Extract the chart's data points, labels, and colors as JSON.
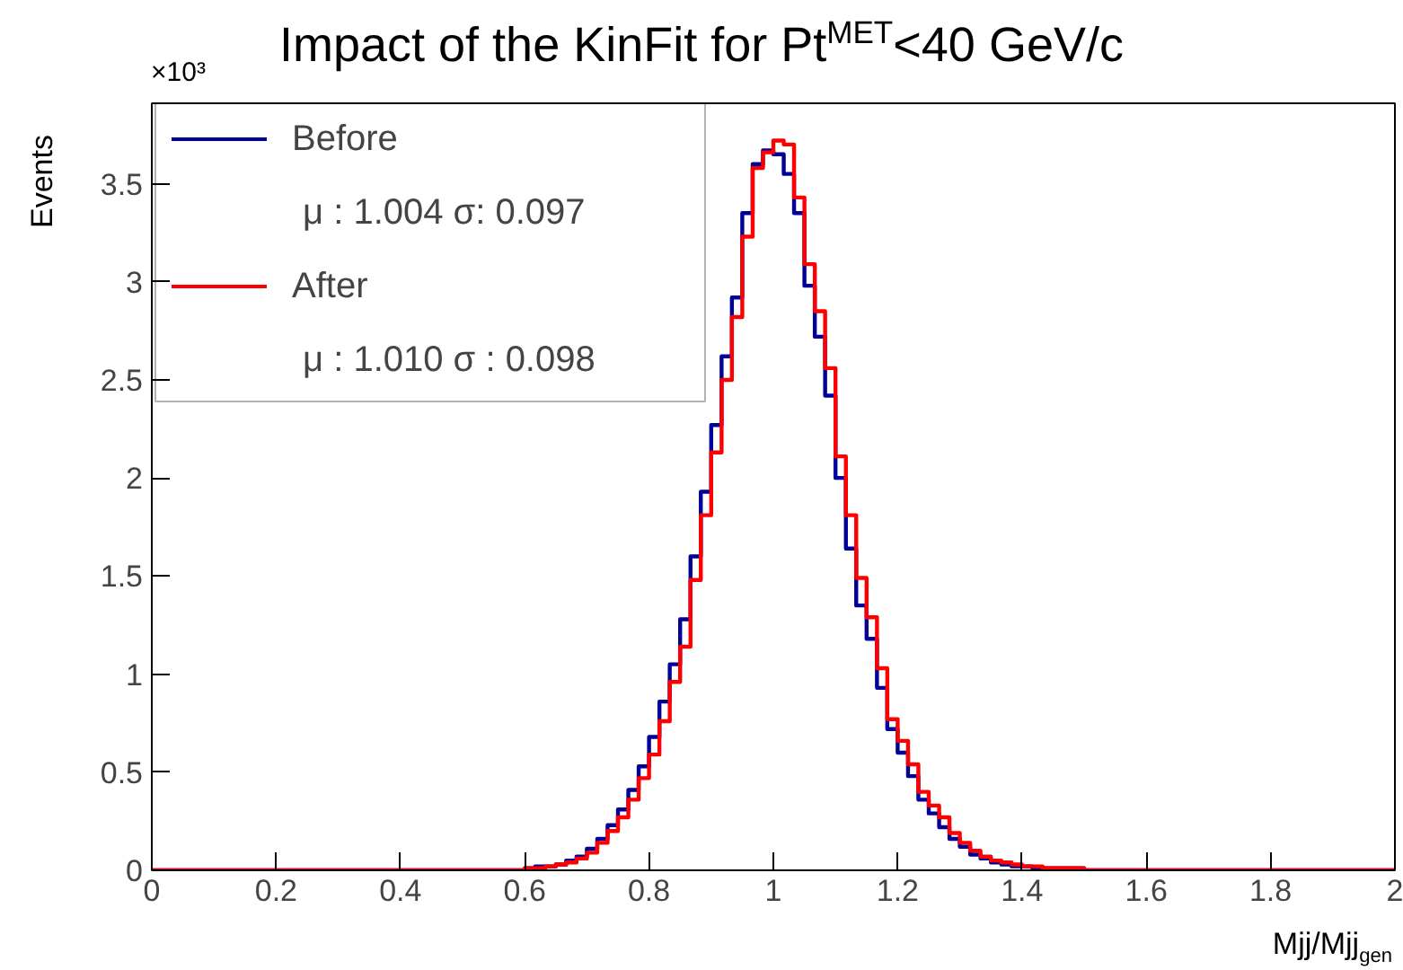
{
  "chart_data": {
    "type": "histogram",
    "title": "Impact of the KinFit for Pt$^{MET}$<40 GeV/c",
    "xlabel": "Mjj/Mjj$_{gen}$",
    "ylabel": "Events",
    "bins": [
      0,
      0.6,
      0.6167,
      0.6333,
      0.65,
      0.6667,
      0.6833,
      0.7,
      0.7167,
      0.7333,
      0.75,
      0.7667,
      0.7833,
      0.8,
      0.8167,
      0.8333,
      0.85,
      0.8667,
      0.8833,
      0.9,
      0.9167,
      0.9333,
      0.95,
      0.9667,
      0.9833,
      1.0,
      1.0167,
      1.0333,
      1.05,
      1.0667,
      1.0833,
      1.1,
      1.1167,
      1.1333,
      1.15,
      1.1667,
      1.1833,
      1.2,
      1.2167,
      1.2333,
      1.25,
      1.2667,
      1.2833,
      1.3,
      1.3167,
      1.3333,
      1.35,
      1.3667,
      1.3833,
      1.4,
      1.4167,
      1.4333,
      1.45,
      1.4667,
      1.4833,
      1.5,
      2
    ],
    "series": [
      {
        "name": "Before",
        "color": "#000099",
        "values": [
          0,
          0.01,
          0.02,
          0.02,
          0.03,
          0.05,
          0.07,
          0.11,
          0.16,
          0.23,
          0.31,
          0.41,
          0.53,
          0.68,
          0.86,
          1.05,
          1.28,
          1.6,
          1.93,
          2.27,
          2.62,
          2.92,
          3.35,
          3.6,
          3.67,
          3.65,
          3.55,
          3.35,
          2.98,
          2.72,
          2.42,
          2.0,
          1.64,
          1.35,
          1.18,
          0.93,
          0.72,
          0.6,
          0.48,
          0.36,
          0.29,
          0.22,
          0.16,
          0.12,
          0.08,
          0.06,
          0.04,
          0.03,
          0.02,
          0.02,
          0.01,
          0.01,
          0.01,
          0.01,
          0.01,
          0
        ]
      },
      {
        "name": "After",
        "color": "#ff0000",
        "values": [
          0,
          0.01,
          0.01,
          0.02,
          0.03,
          0.04,
          0.06,
          0.09,
          0.14,
          0.2,
          0.27,
          0.36,
          0.47,
          0.59,
          0.76,
          0.96,
          1.14,
          1.48,
          1.81,
          2.13,
          2.5,
          2.82,
          3.23,
          3.58,
          3.66,
          3.72,
          3.7,
          3.43,
          3.09,
          2.85,
          2.56,
          2.11,
          1.81,
          1.49,
          1.29,
          1.03,
          0.77,
          0.66,
          0.54,
          0.4,
          0.33,
          0.27,
          0.19,
          0.14,
          0.1,
          0.07,
          0.05,
          0.04,
          0.03,
          0.02,
          0.02,
          0.01,
          0.01,
          0.01,
          0.01,
          0
        ]
      }
    ],
    "annotations": [
      "μ : 1.004   σ: 0.097",
      "μ : 1.010   σ : 0.098",
      "×10³"
    ],
    "xlim": [
      0,
      2
    ],
    "ylim": [
      0,
      3.91
    ],
    "xticks": [
      0,
      0.2,
      0.4,
      0.6,
      0.8,
      1,
      1.2,
      1.4,
      1.6,
      1.8,
      2
    ],
    "yticks": [
      0,
      0.5,
      1,
      1.5,
      2,
      2.5,
      3,
      3.5
    ],
    "grid": false,
    "legend": "top left",
    "line_style": "solid"
  }
}
